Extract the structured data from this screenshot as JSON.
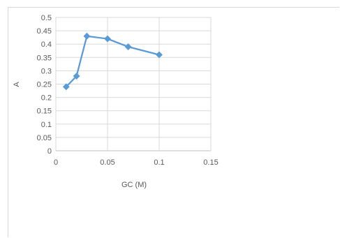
{
  "chart_data": {
    "type": "scatter",
    "title": "",
    "xlabel": "GC (M)",
    "ylabel": "A",
    "xlim": [
      0,
      0.15
    ],
    "ylim": [
      0,
      0.5
    ],
    "xticks": [
      "0",
      "0.05",
      "0.1",
      "0.15"
    ],
    "yticks": [
      "0",
      "0.05",
      "0.1",
      "0.15",
      "0.2",
      "0.25",
      "0.3",
      "0.35",
      "0.4",
      "0.45",
      "0.5"
    ],
    "grid": true,
    "legend": "none",
    "series": [
      {
        "color": "#5b9bd5",
        "x": [
          0.01,
          0.02,
          0.03,
          0.05,
          0.07,
          0.1
        ],
        "y": [
          0.24,
          0.28,
          0.43,
          0.42,
          0.39,
          0.36
        ]
      }
    ]
  }
}
